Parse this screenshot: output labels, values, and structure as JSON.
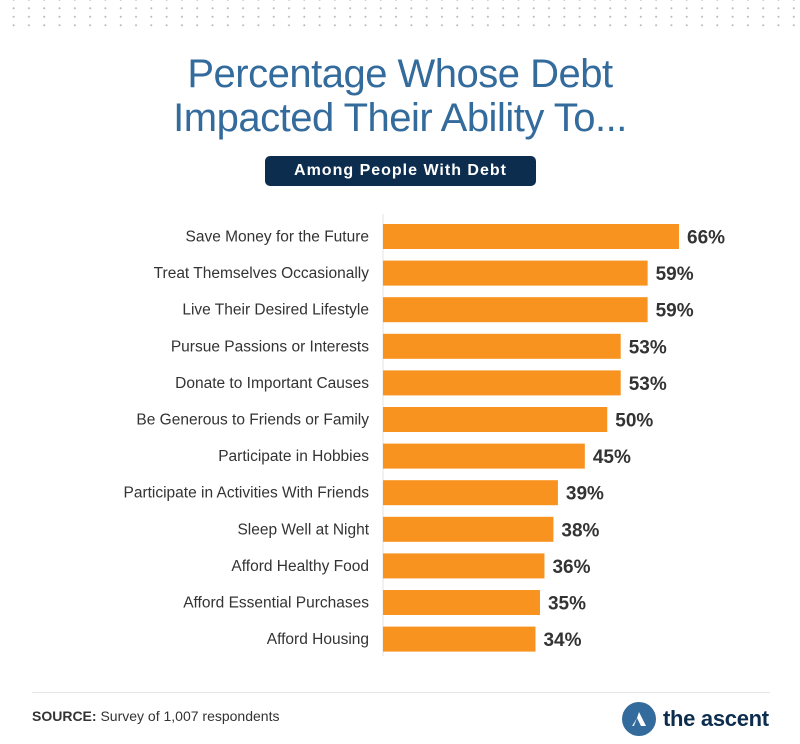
{
  "chart_data": {
    "type": "bar",
    "orientation": "horizontal",
    "title": "Percentage Whose Debt Impacted Their Ability To...",
    "title_lines": [
      "Percentage Whose Debt",
      "Impacted Their Ability To..."
    ],
    "subtitle": "Among People With Debt",
    "categories": [
      "Save Money for the Future",
      "Treat Themselves Occasionally",
      "Live Their Desired Lifestyle",
      "Pursue Passions or Interests",
      "Donate to Important Causes",
      "Be Generous to Friends or Family",
      "Participate in Hobbies",
      "Participate in Activities With Friends",
      "Sleep Well at Night",
      "Afford Healthy Food",
      "Afford Essential Purchases",
      "Afford Housing"
    ],
    "values": [
      66,
      59,
      59,
      53,
      53,
      50,
      45,
      39,
      38,
      36,
      35,
      34
    ],
    "labels": [
      "66%",
      "59%",
      "59%",
      "53%",
      "53%",
      "50%",
      "45%",
      "39%",
      "38%",
      "36%",
      "35%",
      "34%"
    ],
    "xlabel": "",
    "ylabel": "",
    "xlim": [
      0,
      100
    ],
    "grid": false,
    "bar_color": "#f7931e"
  },
  "footer": {
    "source_label": "SOURCE:",
    "source_text": "Survey of 1,007 respondents",
    "brand": "the ascent"
  },
  "colors": {
    "title": "#336b9c",
    "badge": "#0d2d4e"
  }
}
